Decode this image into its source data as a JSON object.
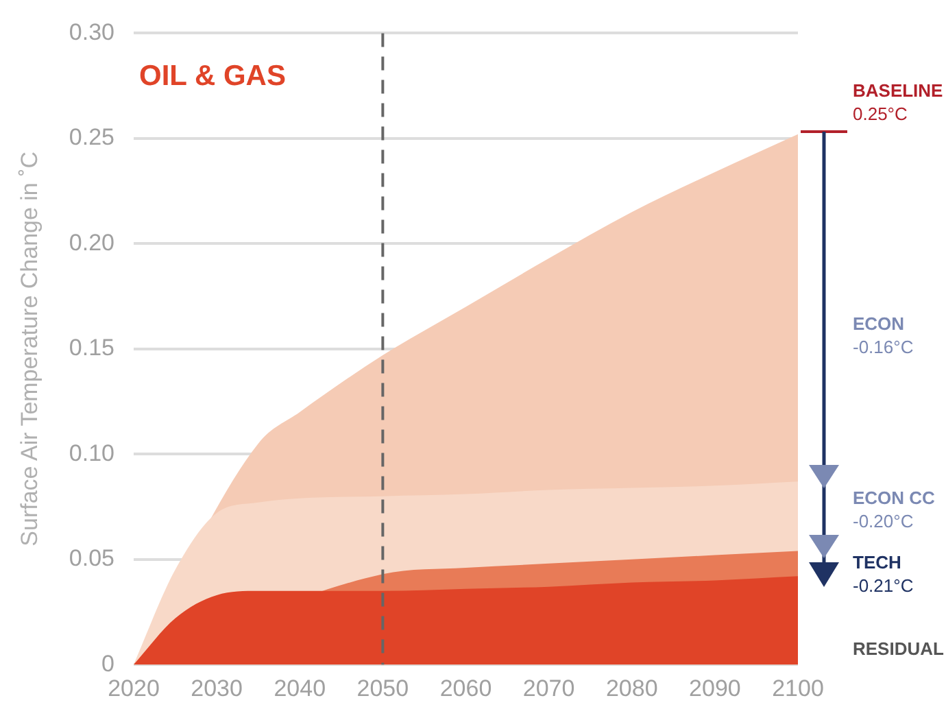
{
  "chart_data": {
    "type": "area",
    "title": "OIL & GAS",
    "ylabel": "Surface Air Temperature Change in ˚C",
    "x": [
      2020,
      2025,
      2030,
      2035,
      2040,
      2050,
      2060,
      2070,
      2080,
      2090,
      2100
    ],
    "series": [
      {
        "color": "#e04428",
        "values": [
          0,
          0.022,
          0.033,
          0.035,
          0.035,
          0.035,
          0.036,
          0.037,
          0.039,
          0.04,
          0.042
        ]
      },
      {
        "color": "#e87b57",
        "values": [
          0,
          null,
          null,
          null,
          null,
          0.043,
          0.046,
          0.048,
          0.05,
          0.052,
          0.054
        ]
      },
      {
        "color": "#f8d9c8",
        "values": [
          0,
          0.045,
          0.072,
          0.077,
          0.079,
          0.08,
          0.081,
          0.083,
          0.084,
          0.085,
          0.087
        ]
      },
      {
        "color": "#f5cbb5",
        "values": [
          0,
          null,
          null,
          0.105,
          0.12,
          0.147,
          0.17,
          0.193,
          0.215,
          0.234,
          0.252
        ]
      }
    ],
    "xlim": [
      2020,
      2100
    ],
    "xticks": [
      2020,
      2030,
      2040,
      2050,
      2060,
      2070,
      2080,
      2090,
      2100
    ],
    "ylim": [
      0,
      0.3
    ],
    "yticks": [
      0,
      {
        "value": 0.05,
        "label": "0.05"
      },
      {
        "value": 0.1,
        "label": "0.10"
      },
      {
        "value": 0.15,
        "label": "0.15"
      },
      {
        "value": 0.2,
        "label": "0.20"
      },
      {
        "value": 0.25,
        "label": "0.25"
      },
      {
        "value": 0.3,
        "label": "0.30"
      }
    ],
    "grid": "y",
    "legend": false,
    "ref_lines": [
      {
        "axis": "x",
        "value": 2050,
        "color": "#666666",
        "line_style": "dashed"
      }
    ],
    "annotations": [
      "BASELINE\n0.25°C",
      "ECON\n-0.16°C",
      "ECON CC\n-0.20°C",
      "TECH\n-0.21°C",
      "RESIDUAL"
    ]
  }
}
